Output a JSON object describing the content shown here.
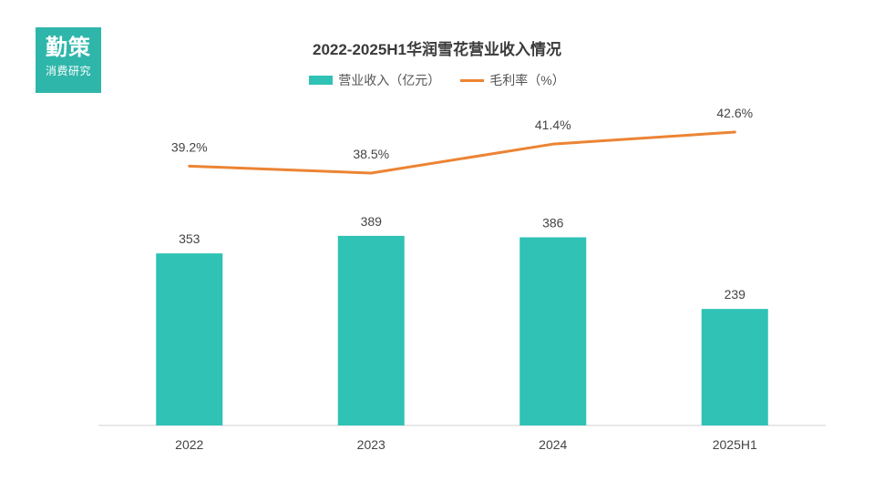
{
  "logo": {
    "line1": "勤策",
    "line2": "消费研究"
  },
  "colors": {
    "bar": "#2fc2b5",
    "line": "#ec8434",
    "axis": "#d0d0d0",
    "label": "#444444"
  },
  "chart_data": {
    "type": "bar",
    "title": "2022-2025H1华润雪花营业收入情况",
    "categories": [
      "2022",
      "2023",
      "2024",
      "2025H1"
    ],
    "series": [
      {
        "name": "营业收入（亿元）",
        "type": "bar",
        "values": [
          353,
          389,
          386,
          239
        ],
        "labels": [
          "353",
          "389",
          "386",
          "239"
        ]
      },
      {
        "name": "毛利率（%）",
        "type": "line",
        "values": [
          39.2,
          38.5,
          41.4,
          42.6
        ],
        "labels": [
          "39.2%",
          "38.5%",
          "41.4%",
          "42.6%"
        ]
      }
    ],
    "xlabel": "",
    "ylabel": "",
    "ylim": [
      0,
      420
    ],
    "y2lim": [
      25,
      45
    ],
    "grid": false,
    "legend": "top-center"
  }
}
